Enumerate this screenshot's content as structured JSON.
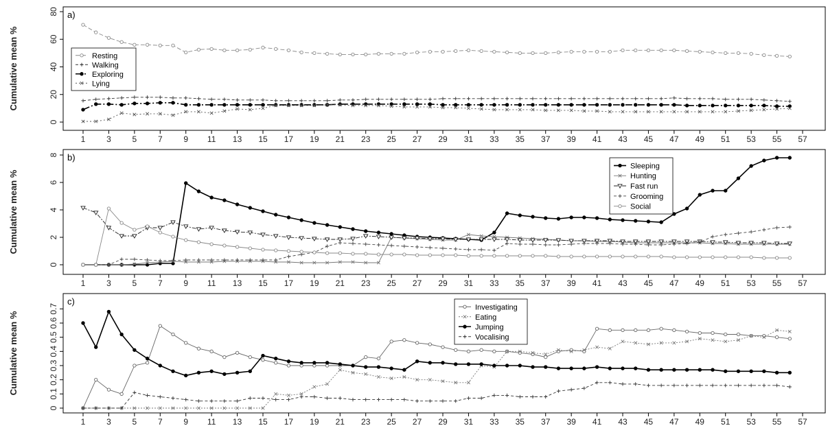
{
  "chart_data": [
    {
      "type": "line",
      "panel_label": "a)",
      "ylabel": "Cumulative mean %",
      "xlim": [
        1,
        57
      ],
      "ylim": [
        0,
        80
      ],
      "yticks": [
        0,
        20,
        40,
        60,
        80
      ],
      "xtick_labels": [
        "1",
        "3",
        "5",
        "7",
        "9",
        "11",
        "13",
        "15",
        "17",
        "19",
        "21",
        "23",
        "25",
        "27",
        "29",
        "31",
        "33",
        "35",
        "37",
        "39",
        "41",
        "43",
        "45",
        "47",
        "49",
        "51",
        "53",
        "55",
        "57"
      ],
      "legend_position": "top-left",
      "series": [
        {
          "name": "Resting",
          "marker": "circle-open",
          "dash": "6,3",
          "color": "#888888",
          "values": [
            70.5,
            65,
            61,
            58,
            56,
            56,
            55.5,
            55.5,
            50.5,
            52.5,
            53,
            52,
            52,
            52.5,
            54,
            53,
            52,
            50.5,
            50,
            49.5,
            49,
            49,
            49,
            49.5,
            49.5,
            49.5,
            50.5,
            51,
            51,
            51.5,
            52,
            51.5,
            51,
            50.5,
            50,
            50,
            50,
            50.5,
            51,
            51,
            51,
            51,
            52,
            52,
            52,
            52,
            52,
            51.5,
            51,
            50.5,
            50,
            50,
            49.5,
            48.5,
            48,
            47.5
          ]
        },
        {
          "name": "Walking",
          "marker": "plus",
          "dash": "4,3",
          "color": "#333333",
          "values": [
            15.5,
            16.5,
            17,
            17.5,
            18,
            18,
            18,
            17.5,
            17.5,
            17,
            16.5,
            16.5,
            16,
            16,
            16,
            15.5,
            15.5,
            15.5,
            15.5,
            15.5,
            16,
            16,
            16.5,
            16.5,
            16.5,
            16.5,
            16.5,
            16.5,
            17,
            17,
            17,
            17,
            17,
            17,
            17,
            17,
            17,
            17,
            17,
            17,
            17,
            17,
            17,
            17,
            17,
            17,
            17.5,
            17,
            17,
            17,
            16.5,
            16.5,
            16.5,
            16,
            15.5,
            15
          ]
        },
        {
          "name": "Exploring",
          "marker": "circle-filled",
          "dash": "10,3,2,3",
          "color": "#000000",
          "values": [
            9,
            13,
            13,
            12.5,
            13.5,
            13.5,
            14,
            14,
            12.5,
            12.5,
            12.5,
            12.5,
            12.5,
            12.5,
            12.5,
            12.5,
            12.5,
            12.5,
            12.5,
            12.5,
            13,
            13,
            13,
            13,
            13,
            13,
            13,
            13,
            12.5,
            12.5,
            12.5,
            12.5,
            12.5,
            12.5,
            12.5,
            12.5,
            12.5,
            12.5,
            12.5,
            12.5,
            12.5,
            12.5,
            12.5,
            12.5,
            12.5,
            12.5,
            12.5,
            12,
            12,
            12,
            12,
            12,
            12,
            12,
            11.5,
            11.5
          ]
        },
        {
          "name": "Lying",
          "marker": "cross",
          "dash": "2,3",
          "color": "#555555",
          "values": [
            0.5,
            0.5,
            2,
            6.5,
            5.5,
            6,
            6,
            5,
            7.5,
            7.5,
            6.5,
            8,
            9.5,
            9,
            10,
            12,
            12,
            12,
            12,
            12.5,
            12.5,
            12,
            12,
            12,
            11.5,
            11,
            11,
            11,
            10.5,
            10.5,
            10,
            9.5,
            9,
            9,
            9,
            9,
            8.5,
            8.5,
            8.5,
            8,
            8,
            7.5,
            7.5,
            7.5,
            7.5,
            7.5,
            7.5,
            7.5,
            7.5,
            7.5,
            7.5,
            8,
            8.5,
            9,
            9.5,
            10
          ]
        }
      ]
    },
    {
      "type": "line",
      "panel_label": "b)",
      "ylabel": "Cumulative mean %",
      "xlim": [
        1,
        57
      ],
      "ylim": [
        0,
        8
      ],
      "yticks": [
        0,
        2,
        4,
        6,
        8
      ],
      "xtick_labels": [
        "1",
        "3",
        "5",
        "7",
        "9",
        "11",
        "13",
        "15",
        "17",
        "19",
        "21",
        "23",
        "25",
        "27",
        "29",
        "31",
        "33",
        "35",
        "37",
        "39",
        "41",
        "43",
        "45",
        "47",
        "49",
        "51",
        "53",
        "55",
        "57"
      ],
      "legend_position": "top-right",
      "series": [
        {
          "name": "Sleeping",
          "marker": "circle-filled",
          "dash": "",
          "color": "#000000",
          "values": [
            0,
            0,
            0,
            0,
            0,
            0,
            0.1,
            0.1,
            5.95,
            5.35,
            4.9,
            4.7,
            4.4,
            4.15,
            3.9,
            3.65,
            3.45,
            3.25,
            3.05,
            2.9,
            2.75,
            2.6,
            2.45,
            2.35,
            2.25,
            2.15,
            2.05,
            2,
            1.95,
            1.9,
            1.85,
            1.8,
            2.35,
            3.75,
            3.6,
            3.5,
            3.4,
            3.35,
            3.45,
            3.45,
            3.4,
            3.3,
            3.25,
            3.2,
            3.15,
            3.1,
            3.7,
            4.1,
            5.1,
            5.4,
            5.4,
            6.3,
            7.2,
            7.6,
            7.8,
            7.8
          ]
        },
        {
          "name": "Hunting",
          "marker": "cross",
          "dash": "",
          "color": "#777777",
          "values": [
            0,
            0,
            0,
            0,
            0.05,
            0.15,
            0.2,
            0.25,
            0.2,
            0.2,
            0.2,
            0.25,
            0.25,
            0.25,
            0.25,
            0.2,
            0.2,
            0.15,
            0.15,
            0.15,
            0.2,
            0.2,
            0.15,
            0.15,
            2.0,
            1.95,
            1.9,
            1.85,
            1.8,
            1.8,
            2.2,
            2.1,
            2.05,
            2.0,
            1.95,
            1.9,
            1.85,
            1.8,
            1.75,
            1.75,
            1.7,
            1.7,
            1.65,
            1.6,
            1.6,
            1.6,
            1.6,
            1.6,
            1.6,
            1.55,
            1.55,
            1.5,
            1.5,
            1.5,
            1.5,
            1.5
          ]
        },
        {
          "name": "Fast run",
          "marker": "triangle-down-open",
          "dash": "6,2,2,2",
          "color": "#222222",
          "values": [
            4.15,
            3.8,
            2.7,
            2.1,
            2.1,
            2.7,
            2.7,
            3.1,
            2.8,
            2.6,
            2.7,
            2.5,
            2.4,
            2.35,
            2.2,
            2.1,
            2.0,
            1.95,
            1.9,
            1.85,
            1.85,
            1.9,
            2.1,
            2.05,
            2.0,
            1.95,
            1.95,
            1.9,
            1.9,
            1.85,
            1.85,
            1.85,
            1.85,
            1.85,
            1.8,
            1.8,
            1.8,
            1.8,
            1.75,
            1.75,
            1.75,
            1.75,
            1.7,
            1.7,
            1.7,
            1.7,
            1.7,
            1.7,
            1.7,
            1.65,
            1.65,
            1.6,
            1.6,
            1.6,
            1.55,
            1.55
          ]
        },
        {
          "name": "Grooming",
          "marker": "plus",
          "dash": "4,3",
          "color": "#444444",
          "values": [
            0,
            0,
            0,
            0.4,
            0.4,
            0.35,
            0.3,
            0.3,
            0.35,
            0.35,
            0.35,
            0.35,
            0.35,
            0.35,
            0.35,
            0.35,
            0.6,
            0.75,
            0.9,
            1.35,
            1.6,
            1.55,
            1.5,
            1.45,
            1.4,
            1.35,
            1.3,
            1.25,
            1.2,
            1.15,
            1.1,
            1.1,
            1.05,
            1.55,
            1.5,
            1.5,
            1.45,
            1.45,
            1.5,
            1.55,
            1.55,
            1.55,
            1.5,
            1.5,
            1.45,
            1.45,
            1.5,
            1.55,
            1.65,
            2.05,
            2.2,
            2.3,
            2.4,
            2.55,
            2.7,
            2.75
          ]
        },
        {
          "name": "Social",
          "marker": "circle-open",
          "dash": "",
          "color": "#888888",
          "values": [
            0,
            0,
            4.1,
            3.05,
            2.55,
            2.8,
            2.35,
            2.05,
            1.8,
            1.65,
            1.5,
            1.4,
            1.3,
            1.2,
            1.1,
            1.05,
            1.0,
            0.95,
            0.9,
            0.85,
            0.85,
            0.8,
            0.8,
            0.75,
            0.75,
            0.75,
            0.7,
            0.7,
            0.7,
            0.7,
            0.65,
            0.65,
            0.65,
            0.65,
            0.65,
            0.65,
            0.65,
            0.6,
            0.6,
            0.6,
            0.6,
            0.6,
            0.6,
            0.6,
            0.6,
            0.6,
            0.55,
            0.55,
            0.55,
            0.55,
            0.55,
            0.55,
            0.55,
            0.5,
            0.5,
            0.5
          ]
        }
      ]
    },
    {
      "type": "line",
      "panel_label": "c)",
      "ylabel": "Cumulative mean %",
      "xlim": [
        1,
        57
      ],
      "ylim": [
        0,
        0.75
      ],
      "yticks": [
        0,
        0.1,
        0.2,
        0.3,
        0.4,
        0.5,
        0.6,
        0.7
      ],
      "ytick_labels": [
        "0",
        "0.1",
        "0.2",
        "0.3",
        "0.4",
        "0.5",
        "0.6",
        "0.7"
      ],
      "xtick_labels": [
        "1",
        "3",
        "5",
        "7",
        "9",
        "11",
        "13",
        "15",
        "17",
        "19",
        "21",
        "23",
        "25",
        "27",
        "29",
        "31",
        "33",
        "35",
        "37",
        "39",
        "41",
        "43",
        "45",
        "47",
        "49",
        "51",
        "53",
        "55",
        "57"
      ],
      "legend_position": "top-center",
      "series": [
        {
          "name": "Investigating",
          "marker": "circle-open",
          "dash": "",
          "color": "#666666",
          "values": [
            0,
            0.2,
            0.13,
            0.1,
            0.3,
            0.32,
            0.58,
            0.52,
            0.46,
            0.42,
            0.4,
            0.36,
            0.39,
            0.36,
            0.34,
            0.32,
            0.3,
            0.3,
            0.3,
            0.3,
            0.3,
            0.3,
            0.36,
            0.35,
            0.47,
            0.48,
            0.46,
            0.45,
            0.43,
            0.41,
            0.4,
            0.41,
            0.4,
            0.4,
            0.39,
            0.38,
            0.36,
            0.4,
            0.41,
            0.4,
            0.56,
            0.55,
            0.55,
            0.55,
            0.55,
            0.56,
            0.55,
            0.54,
            0.53,
            0.53,
            0.52,
            0.52,
            0.51,
            0.51,
            0.5,
            0.49
          ]
        },
        {
          "name": "Eating",
          "marker": "cross",
          "dash": "2,2",
          "color": "#777777",
          "values": [
            0,
            0,
            0,
            0,
            0,
            0,
            0,
            0,
            0,
            0,
            0,
            0,
            0,
            0,
            0,
            0.1,
            0.09,
            0.1,
            0.15,
            0.17,
            0.27,
            0.25,
            0.24,
            0.22,
            0.21,
            0.22,
            0.2,
            0.2,
            0.19,
            0.18,
            0.18,
            0.3,
            0.29,
            0.4,
            0.4,
            0.39,
            0.38,
            0.41,
            0.4,
            0.41,
            0.43,
            0.42,
            0.47,
            0.46,
            0.45,
            0.46,
            0.46,
            0.47,
            0.49,
            0.48,
            0.47,
            0.48,
            0.51,
            0.5,
            0.55,
            0.54
          ]
        },
        {
          "name": "Jumping",
          "marker": "circle-filled",
          "dash": "",
          "color": "#000000",
          "values": [
            0.6,
            0.43,
            0.68,
            0.52,
            0.41,
            0.35,
            0.3,
            0.26,
            0.23,
            0.25,
            0.26,
            0.24,
            0.25,
            0.26,
            0.37,
            0.35,
            0.33,
            0.32,
            0.32,
            0.32,
            0.31,
            0.3,
            0.29,
            0.29,
            0.28,
            0.27,
            0.33,
            0.32,
            0.32,
            0.31,
            0.31,
            0.31,
            0.3,
            0.3,
            0.3,
            0.29,
            0.29,
            0.28,
            0.28,
            0.28,
            0.29,
            0.28,
            0.28,
            0.28,
            0.27,
            0.27,
            0.27,
            0.27,
            0.27,
            0.27,
            0.26,
            0.26,
            0.26,
            0.26,
            0.25,
            0.25
          ]
        },
        {
          "name": "Vocalising",
          "marker": "plus",
          "dash": "4,3",
          "color": "#333333",
          "values": [
            0,
            0,
            0,
            0,
            0.11,
            0.09,
            0.08,
            0.07,
            0.06,
            0.05,
            0.05,
            0.05,
            0.05,
            0.07,
            0.07,
            0.06,
            0.06,
            0.08,
            0.08,
            0.07,
            0.07,
            0.06,
            0.06,
            0.06,
            0.06,
            0.06,
            0.05,
            0.05,
            0.05,
            0.05,
            0.07,
            0.07,
            0.09,
            0.09,
            0.08,
            0.08,
            0.08,
            0.12,
            0.13,
            0.14,
            0.18,
            0.18,
            0.17,
            0.17,
            0.16,
            0.16,
            0.16,
            0.16,
            0.16,
            0.16,
            0.16,
            0.16,
            0.16,
            0.16,
            0.16,
            0.15
          ]
        }
      ]
    }
  ]
}
